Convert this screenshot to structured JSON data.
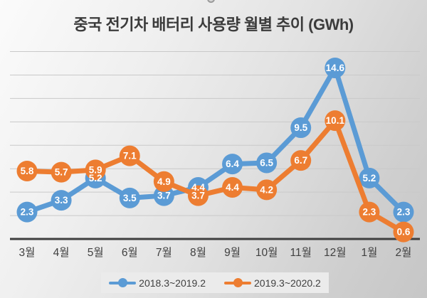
{
  "chart_data": {
    "type": "line",
    "title": "중국 전기차 배터리 사용량 월별 추이 (GWh)",
    "categories": [
      "3월",
      "4월",
      "5월",
      "6월",
      "7월",
      "8월",
      "9월",
      "10월",
      "11월",
      "12월",
      "1월",
      "2월"
    ],
    "series": [
      {
        "name": "2018.3~2019.2",
        "color": "#5B9BD5",
        "values": [
          2.3,
          3.3,
          5.2,
          3.5,
          3.7,
          4.4,
          6.4,
          6.5,
          9.5,
          14.6,
          5.2,
          2.3
        ]
      },
      {
        "name": "2019.3~2020.2",
        "color": "#ED7D31",
        "values": [
          5.8,
          5.7,
          5.9,
          7.1,
          4.9,
          3.7,
          4.4,
          4.2,
          6.7,
          10.1,
          2.3,
          0.6
        ]
      }
    ],
    "xlabel": "",
    "ylabel": "",
    "ylim": [
      0,
      16
    ],
    "gridline_step": 2,
    "grid": true,
    "y_axis_labels_visible": false,
    "data_label_style": "white bold numbers inside circular markers",
    "legend_position": "bottom"
  },
  "colors": {
    "axis_line": "#3f3f3f",
    "gridline": "#c9c9c9",
    "title_text": "#3b3b3b",
    "axis_label_text": "#404040",
    "data_label_text": "#ffffff",
    "legend_background": "#ebebeb"
  }
}
